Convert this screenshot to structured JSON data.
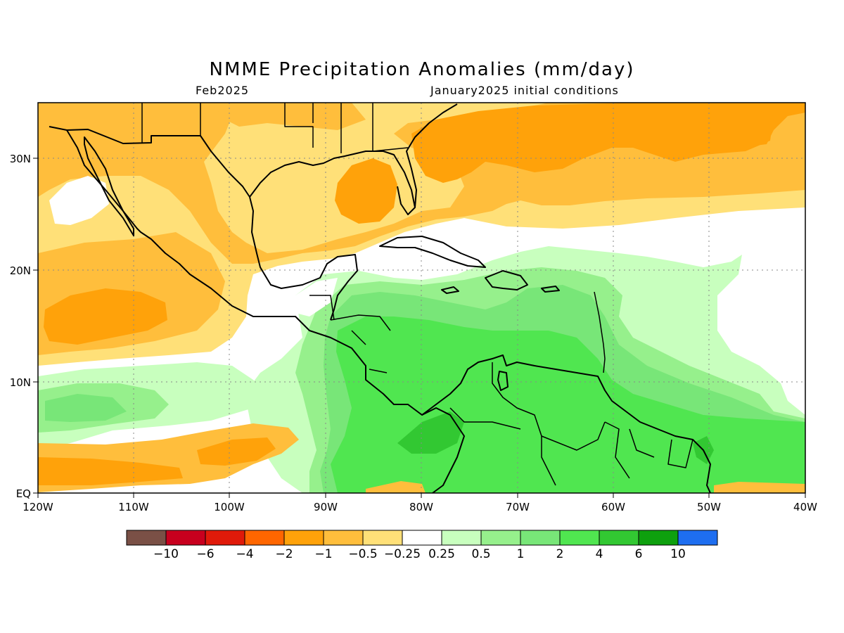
{
  "title": "NMME Precipitation Anomalies (mm/day)",
  "valid_month": "Feb2025",
  "init_label": "January2025 initial conditions",
  "map": {
    "lon_range": [
      "120W",
      "40W"
    ],
    "lat_range": [
      "EQ",
      "35N"
    ],
    "lon_ticks": [
      "120W",
      "110W",
      "100W",
      "90W",
      "80W",
      "70W",
      "60W",
      "50W",
      "40W"
    ],
    "lat_ticks": [
      "EQ",
      "10N",
      "20N",
      "30N"
    ],
    "grid": "dotted"
  },
  "colorbar": {
    "labels": [
      "−10",
      "−6",
      "−4",
      "−2",
      "−1",
      "−0.5",
      "−0.25",
      "0.25",
      "0.5",
      "1",
      "2",
      "4",
      "6",
      "10"
    ],
    "colors": [
      "#7a5046",
      "#c8001e",
      "#e01a0a",
      "#ff6600",
      "#ffa20a",
      "#ffbe3c",
      "#ffe078",
      "#ffffff",
      "#c8ffbe",
      "#96f08c",
      "#78e678",
      "#50e650",
      "#32c832",
      "#0ea00e",
      "#1e6ef0"
    ]
  },
  "colors": {
    "dry_strong": "#ffa20a",
    "dry_moderate": "#ffbe3c",
    "dry_weak": "#ffe078",
    "neutral": "#ffffff",
    "wet_weak": "#c8ffbe",
    "wet_light": "#96f08c",
    "wet_moderate": "#78e678",
    "wet_strong": "#50e650",
    "wet_very_strong": "#32c832"
  }
}
